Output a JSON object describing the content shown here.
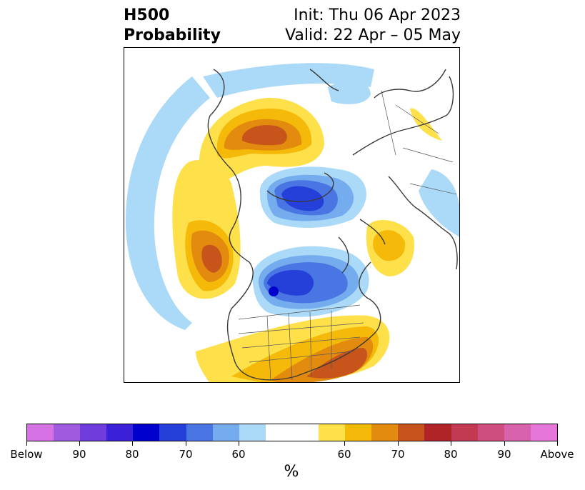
{
  "header": {
    "title_line1": "H500",
    "title_line2": "Probability",
    "init": "Init: Thu 06 Apr 2023",
    "valid": "Valid: 22 Apr – 05 May"
  },
  "colorbar": {
    "unit": "%",
    "segments": [
      "#d672e6",
      "#a05ae0",
      "#6f3ddb",
      "#3a20d6",
      "#0000cd",
      "#2540d8",
      "#4a76e4",
      "#74aced",
      "#abd9f8",
      "#ffffff",
      "#ffffff",
      "#fde04a",
      "#f5b90a",
      "#e28b0e",
      "#c7541b",
      "#b02428",
      "#c23a52",
      "#cf4e80",
      "#d962ad",
      "#e676da"
    ],
    "tick_labels": [
      "Below",
      "90",
      "80",
      "70",
      "60",
      "60",
      "70",
      "80",
      "90",
      "Above"
    ]
  },
  "map": {
    "below_colors": {
      "60": "#abd9f8",
      "70": "#74aced",
      "80": "#4a76e4",
      "90": "#2540d8",
      "95": "#0000cd"
    },
    "above_colors": {
      "55": "#fde04a",
      "60": "#f5b90a",
      "70": "#e28b0e",
      "80": "#c7541b"
    }
  }
}
